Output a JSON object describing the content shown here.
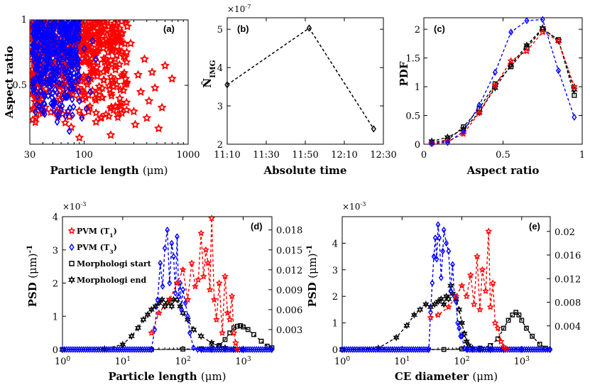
{
  "colors": {
    "red": "#ff0000",
    "blue": "#0000ff",
    "black": "#000000"
  },
  "chart_data": [
    {
      "id": "a",
      "panel_label": "(a)",
      "type": "scatter",
      "xlabel_text": "Particle length",
      "xlabel_unit": "(μm)",
      "ylabel": "Aspect ratio",
      "xscale": "log",
      "xlim": [
        30,
        1000
      ],
      "ylim": [
        0.05,
        1.0
      ],
      "xticks": [
        {
          "v": 30,
          "label": "30"
        },
        {
          "v": 100,
          "label": "100"
        },
        {
          "v": 1000,
          "label": "1000"
        }
      ],
      "yticks": [
        {
          "v": 0.5,
          "label": "0.5"
        },
        {
          "v": 1,
          "label": "1"
        }
      ],
      "series": [
        {
          "name": "PVM (T1)",
          "color": "#ff0000",
          "marker": "star",
          "points": [
            [
              200,
              0.62
            ],
            [
              240,
              0.72
            ],
            [
              350,
              0.45
            ],
            [
              420,
              0.38
            ],
            [
              700,
              0.55
            ],
            [
              520,
              0.17
            ],
            [
              600,
              0.65
            ],
            [
              300,
              0.3
            ],
            [
              180,
              0.12
            ],
            [
              150,
              0.88
            ],
            [
              260,
              0.95
            ],
            [
              330,
              0.58
            ],
            [
              400,
              0.25
            ],
            [
              130,
              0.22
            ],
            [
              90,
              0.1
            ],
            [
              480,
              0.48
            ],
            [
              220,
              0.4
            ],
            [
              160,
              0.7
            ],
            [
              280,
              0.82
            ],
            [
              110,
              0.3
            ],
            [
              380,
              0.7
            ],
            [
              310,
              0.2
            ],
            [
              190,
              0.52
            ],
            [
              120,
              0.6
            ],
            [
              75,
              0.18
            ],
            [
              560,
              0.33
            ],
            [
              250,
              0.55
            ],
            [
              140,
              0.45
            ],
            [
              100,
              0.8
            ],
            [
              450,
              0.6
            ]
          ]
        },
        {
          "name": "PVM (T3)",
          "color": "#0000ff",
          "marker": "diamond",
          "points": [
            [
              80,
              0.86
            ],
            [
              100,
              0.78
            ],
            [
              120,
              0.84
            ],
            [
              70,
              0.3
            ],
            [
              65,
              0.62
            ],
            [
              90,
              0.38
            ],
            [
              110,
              0.55
            ],
            [
              55,
              0.22
            ],
            [
              85,
              0.72
            ],
            [
              95,
              0.25
            ],
            [
              60,
              0.95
            ],
            [
              75,
              0.48
            ],
            [
              50,
              0.65
            ],
            [
              130,
              0.7
            ],
            [
              105,
              0.32
            ],
            [
              45,
              0.42
            ],
            [
              88,
              0.58
            ],
            [
              72,
              0.15
            ],
            [
              115,
              0.45
            ],
            [
              58,
              0.35
            ]
          ]
        }
      ],
      "dense_regions": [
        {
          "color": "#ff0000",
          "x_range": [
            32,
            260
          ],
          "y_range": [
            0.2,
            1.0
          ],
          "count": 520
        },
        {
          "color": "#0000ff",
          "x_range": [
            32,
            90
          ],
          "y_range": [
            0.25,
            1.0
          ],
          "count": 460
        }
      ]
    },
    {
      "id": "b",
      "panel_label": "(b)",
      "type": "line",
      "xlabel": "Absolute time",
      "ylabel": "N̂",
      "ylabel_sub": "IMG",
      "multiplier": "×10",
      "multiplier_exp": "-7",
      "x_labels": [
        "11:10",
        "11:30",
        "11:50",
        "12:10",
        "12:30"
      ],
      "x_minutes": [
        0,
        20,
        40,
        60,
        80
      ],
      "ylim": [
        2,
        5.3
      ],
      "yticks": [
        2,
        3,
        4,
        5
      ],
      "series": [
        {
          "name": "N_IMG",
          "color": "#000000",
          "x": [
            0,
            42,
            75
          ],
          "y": [
            3.55,
            5.03,
            2.4
          ]
        }
      ]
    },
    {
      "id": "c",
      "panel_label": "(c)",
      "type": "line",
      "xlabel": "Aspect ratio",
      "ylabel": "PDF",
      "xlim": [
        0,
        1
      ],
      "ylim": [
        0,
        2.2
      ],
      "xticks": [
        0,
        0.5,
        1
      ],
      "yticks": [
        0,
        0.5,
        1,
        1.5,
        2
      ],
      "x": [
        0.05,
        0.15,
        0.25,
        0.35,
        0.45,
        0.55,
        0.65,
        0.75,
        0.85,
        0.95
      ],
      "series": [
        {
          "name": "Morphologi start",
          "color": "#000000",
          "marker": "square",
          "y": [
            0.03,
            0.07,
            0.3,
            0.62,
            1.05,
            1.35,
            1.68,
            2.0,
            1.82,
            0.85
          ]
        },
        {
          "name": "Morphologi end",
          "color": "#000000",
          "marker": "hexagram",
          "y": [
            0.05,
            0.12,
            0.26,
            0.55,
            0.98,
            1.38,
            1.72,
            2.02,
            1.8,
            0.95
          ]
        },
        {
          "name": "PVM (T1)",
          "color": "#ff0000",
          "marker": "star",
          "y": [
            0.02,
            0.05,
            0.18,
            0.55,
            1.02,
            1.45,
            1.62,
            1.95,
            1.8,
            1.0
          ]
        },
        {
          "name": "PVM (T3)",
          "color": "#0000ff",
          "marker": "diamond",
          "y": [
            0.01,
            0.03,
            0.22,
            0.68,
            1.25,
            1.95,
            2.15,
            2.17,
            1.28,
            0.47
          ]
        }
      ]
    },
    {
      "id": "d",
      "panel_label": "(d)",
      "type": "line",
      "xlabel_text": "Particle length",
      "xlabel_unit": "(μm)",
      "ylabel_text": "PSD",
      "ylabel_unit": "(μm)",
      "ylabel_exp": "-1",
      "multiplier": "×10",
      "multiplier_exp": "-3",
      "xscale": "log",
      "xlim": [
        1,
        3000
      ],
      "ylim_left": [
        0,
        4
      ],
      "ylim_right": [
        0,
        0.02
      ],
      "xticks": [
        {
          "v": 1,
          "base": "10",
          "exp": "0"
        },
        {
          "v": 10,
          "base": "10",
          "exp": "1"
        },
        {
          "v": 100,
          "base": "10",
          "exp": "2"
        },
        {
          "v": 1000,
          "base": "10",
          "exp": "3"
        }
      ],
      "yticks_left": [
        0,
        1,
        2,
        3,
        4
      ],
      "yticks_right": [
        {
          "v": 0.003,
          "label": "0.003"
        },
        {
          "v": 0.006,
          "label": "0.006"
        },
        {
          "v": 0.009,
          "label": "0.009"
        },
        {
          "v": 0.012,
          "label": "0.012"
        },
        {
          "v": 0.015,
          "label": "0.015"
        },
        {
          "v": 0.018,
          "label": "0.018"
        }
      ],
      "legend": [
        {
          "label": "PVM (T",
          "sub": "1",
          "close": ")",
          "color": "#ff0000",
          "marker": "star"
        },
        {
          "label": "PVM (T",
          "sub": "3",
          "close": ")",
          "color": "#0000ff",
          "marker": "diamond"
        },
        {
          "label": "Morphologi start",
          "sub": "",
          "close": "",
          "color": "#000000",
          "marker": "square"
        },
        {
          "label": "Morphologi end",
          "sub": "",
          "close": "",
          "color": "#000000",
          "marker": "hexagram"
        }
      ],
      "series": [
        {
          "name": "Morphologi end",
          "axis": "left",
          "color": "#000000",
          "marker": "hexagram",
          "x": [
            1,
            5,
            10,
            14,
            18,
            22,
            26,
            30,
            35,
            40,
            45,
            50,
            55,
            60,
            65,
            70,
            80,
            90,
            100,
            120,
            150,
            200,
            300,
            400,
            500,
            700,
            1000
          ],
          "y": [
            0,
            0.02,
            0.15,
            0.4,
            0.65,
            0.9,
            1.05,
            1.2,
            1.3,
            1.4,
            1.5,
            1.3,
            1.4,
            1.5,
            1.3,
            1.5,
            1.5,
            1.3,
            1.1,
            0.9,
            0.6,
            0.4,
            0.2,
            0.1,
            0.05,
            0.01,
            0
          ]
        },
        {
          "name": "Morphologi start",
          "axis": "left",
          "color": "#000000",
          "marker": "square",
          "x": [
            1,
            30,
            100,
            200,
            300,
            400,
            500,
            600,
            700,
            800,
            900,
            1000,
            1200,
            1500,
            2000,
            2500,
            3000
          ],
          "y": [
            0,
            0,
            0.01,
            0.02,
            0.05,
            0.12,
            0.3,
            0.5,
            0.65,
            0.7,
            0.72,
            0.68,
            0.6,
            0.45,
            0.25,
            0.1,
            0.05
          ]
        },
        {
          "name": "PVM (T3)",
          "axis": "left",
          "color": "#0000ff",
          "marker": "diamond",
          "x": [
            1,
            30,
            34,
            38,
            42,
            46,
            50,
            55,
            60,
            65,
            70,
            75,
            80,
            85,
            90,
            95,
            100,
            110,
            120,
            130,
            150,
            175,
            200,
            300,
            500,
            1000,
            3000
          ],
          "y": [
            0,
            0,
            0.6,
            1.5,
            2.6,
            1.9,
            3.05,
            3.6,
            2.0,
            3.2,
            2.8,
            1.7,
            3.4,
            1.6,
            2.0,
            1.2,
            1.8,
            1.4,
            1.0,
            0.5,
            0.05,
            0,
            0,
            0,
            0,
            0,
            0
          ]
        },
        {
          "name": "PVM (T1)",
          "axis": "left",
          "color": "#ff0000",
          "marker": "star",
          "x": [
            30,
            40,
            60,
            80,
            100,
            120,
            140,
            160,
            180,
            200,
            220,
            240,
            260,
            280,
            300,
            330,
            360,
            400,
            450,
            500,
            550,
            600,
            650,
            700,
            750,
            800
          ],
          "y": [
            0.5,
            1.1,
            1.5,
            2.0,
            2.4,
            1.5,
            2.6,
            1.9,
            2.1,
            3.5,
            2.2,
            3.0,
            2.6,
            1.8,
            3.95,
            1.5,
            0.9,
            2.0,
            0.5,
            2.2,
            1.1,
            0.9,
            1.6,
            0.5,
            0.2,
            0
          ]
        }
      ]
    },
    {
      "id": "e",
      "panel_label": "(e)",
      "type": "line",
      "xlabel_text": "CE diameter",
      "xlabel_unit": "(μm)",
      "ylabel_text": "PSD",
      "ylabel_unit": "(μm)",
      "ylabel_exp": "-1",
      "multiplier": "×10",
      "multiplier_exp": "-3",
      "xscale": "log",
      "xlim": [
        1,
        3000
      ],
      "ylim_left": [
        0,
        5
      ],
      "ylim_right": [
        0,
        0.0225
      ],
      "xticks": [
        {
          "v": 1,
          "base": "10",
          "exp": "0"
        },
        {
          "v": 10,
          "base": "10",
          "exp": "1"
        },
        {
          "v": 100,
          "base": "10",
          "exp": "2"
        },
        {
          "v": 1000,
          "base": "10",
          "exp": "3"
        }
      ],
      "yticks_left": [
        0,
        1,
        2,
        3,
        4
      ],
      "yticks_right": [
        {
          "v": 0.004,
          "label": "0.004"
        },
        {
          "v": 0.008,
          "label": "0.008"
        },
        {
          "v": 0.012,
          "label": "0.012"
        },
        {
          "v": 0.016,
          "label": "0.016"
        },
        {
          "v": 0.02,
          "label": "0.02"
        }
      ],
      "series": [
        {
          "name": "Morphologi end",
          "axis": "left",
          "color": "#000000",
          "marker": "hexagram",
          "x": [
            1,
            4,
            8,
            12,
            16,
            20,
            25,
            30,
            35,
            40,
            45,
            50,
            55,
            60,
            65,
            70,
            80,
            90,
            100,
            110,
            120,
            130,
            150,
            200,
            300,
            500
          ],
          "y": [
            0,
            0.05,
            0.45,
            0.9,
            1.3,
            1.5,
            1.7,
            1.6,
            1.7,
            1.8,
            1.9,
            1.7,
            2.0,
            1.9,
            2.4,
            2.1,
            1.9,
            1.5,
            1.0,
            0.6,
            0.3,
            0.15,
            0.05,
            0.01,
            0,
            0
          ]
        },
        {
          "name": "Morphologi start",
          "axis": "left",
          "color": "#000000",
          "marker": "square",
          "x": [
            1,
            50,
            100,
            200,
            300,
            400,
            500,
            600,
            700,
            800,
            900,
            1000,
            1200,
            1500,
            2000,
            2500
          ],
          "y": [
            0,
            0,
            0.02,
            0.05,
            0.15,
            0.4,
            0.8,
            1.1,
            1.3,
            1.4,
            1.3,
            1.1,
            0.8,
            0.5,
            0.2,
            0.05
          ]
        },
        {
          "name": "PVM (T3)",
          "axis": "left",
          "color": "#0000ff",
          "marker": "diamond",
          "x": [
            1,
            28,
            30,
            32,
            34,
            36,
            38,
            40,
            42,
            45,
            48,
            50,
            55,
            60,
            65,
            70,
            75,
            80,
            85,
            90,
            95,
            100,
            110,
            120,
            150,
            300,
            1000,
            3000
          ],
          "y": [
            0,
            0,
            1.4,
            2.5,
            3.5,
            4.2,
            3.4,
            4.7,
            4.2,
            2.7,
            3.7,
            4.5,
            4.0,
            3.7,
            2.2,
            3.2,
            2.0,
            1.8,
            1.0,
            0.8,
            0.5,
            0.5,
            0.05,
            0,
            0,
            0,
            0,
            0
          ]
        },
        {
          "name": "PVM (T1)",
          "axis": "left",
          "color": "#ff0000",
          "marker": "star",
          "x": [
            30,
            40,
            60,
            80,
            100,
            120,
            140,
            160,
            180,
            200,
            220,
            250,
            280,
            300,
            330,
            360,
            400,
            450,
            500,
            550
          ],
          "y": [
            1.2,
            1.3,
            1.6,
            2.0,
            2.4,
            2.0,
            2.8,
            1.7,
            3.5,
            1.5,
            3.0,
            2.2,
            4.45,
            1.6,
            2.5,
            1.0,
            0.8,
            0.3,
            0.1,
            0
          ]
        }
      ]
    }
  ]
}
